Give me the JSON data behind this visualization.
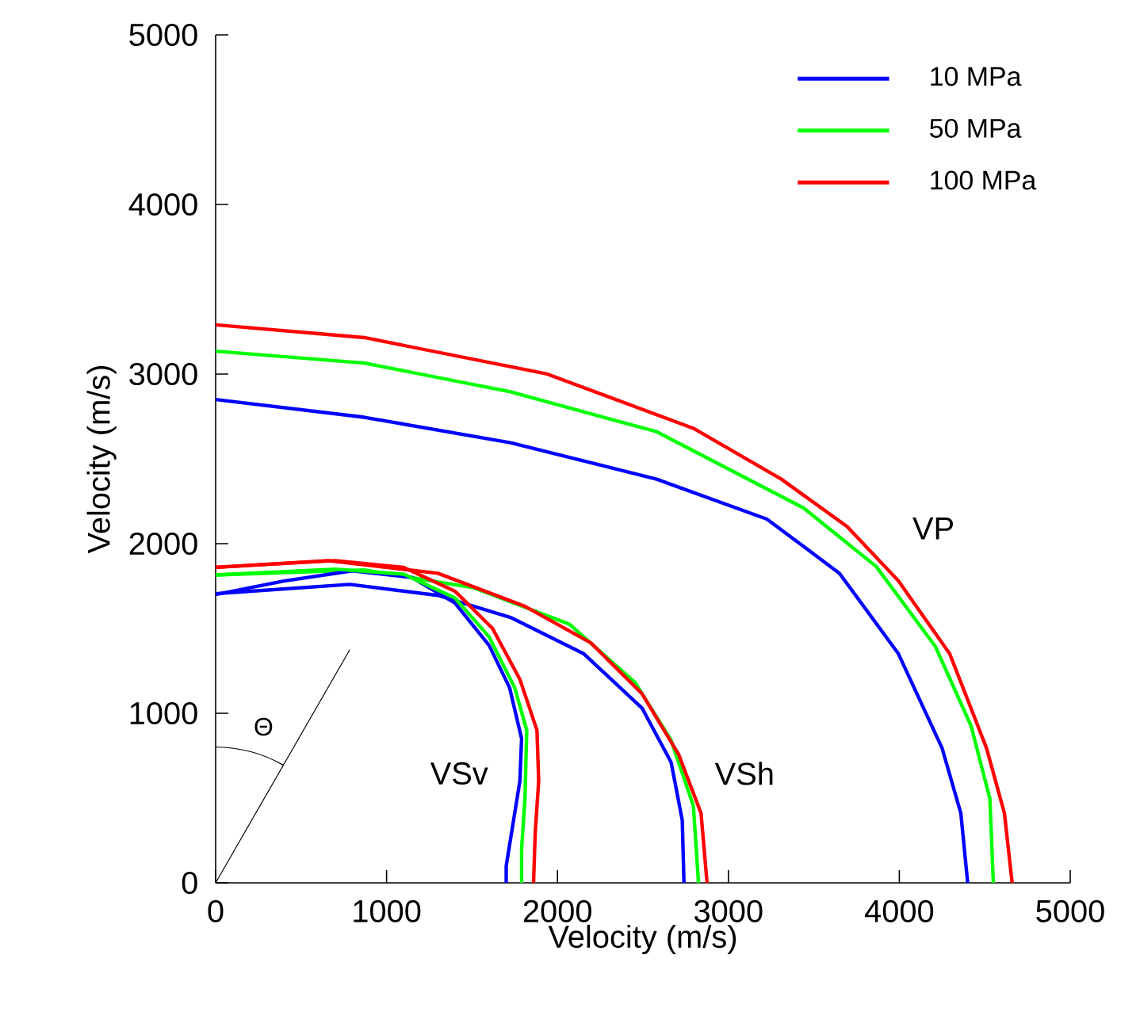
{
  "chart_data": {
    "type": "line",
    "xlabel": "Velocity (m/s)",
    "ylabel": "Velocity (m/s)",
    "xlim": [
      0,
      5000
    ],
    "ylim": [
      0,
      5000
    ],
    "xticks": [
      0,
      1000,
      2000,
      3000,
      4000,
      5000
    ],
    "yticks": [
      0,
      1000,
      2000,
      3000,
      4000,
      5000
    ],
    "legend": "top right",
    "grid": false,
    "marker": "none",
    "line_style": "solid",
    "series": [
      {
        "name": "10 MPa",
        "color": "#0000ff",
        "x": [
          0,
          870,
          1725,
          2580,
          3225,
          3650,
          3995,
          4250,
          4360,
          4400
        ],
        "values": [
          2850,
          2745,
          2595,
          2380,
          2145,
          1825,
          1350,
          795,
          410,
          0
        ]
      },
      {
        "name": "50 MPa",
        "color": "#00ff00",
        "x": [
          0,
          870,
          1725,
          2580,
          3440,
          3865,
          4210,
          4420,
          4530,
          4550
        ],
        "values": [
          3135,
          3065,
          2895,
          2660,
          2210,
          1865,
          1395,
          925,
          495,
          0
        ]
      },
      {
        "name": "100 MPa",
        "color": "#ff0000",
        "x": [
          0,
          870,
          1940,
          2795,
          3310,
          3695,
          3995,
          4295,
          4510,
          4615,
          4660
        ],
        "values": [
          3290,
          3215,
          3000,
          2680,
          2380,
          2100,
          1780,
          1350,
          795,
          410,
          0
        ]
      },
      {
        "color": "#0000ff",
        "x": [
          0,
          140,
          785,
          1300,
          1725,
          2155,
          2495,
          2665,
          2730,
          2740
        ],
        "values": [
          1705,
          1715,
          1760,
          1695,
          1565,
          1350,
          1030,
          710,
          370,
          0
        ]
      },
      {
        "color": "#00ff00",
        "x": [
          0,
          870,
          1510,
          2070,
          2455,
          2665,
          2795,
          2825
        ],
        "values": [
          1815,
          1845,
          1740,
          1525,
          1180,
          840,
          455,
          0
        ]
      },
      {
        "color": "#ff0000",
        "x": [
          0,
          655,
          1300,
          1810,
          2195,
          2495,
          2710,
          2840,
          2875
        ],
        "values": [
          1860,
          1900,
          1825,
          1630,
          1415,
          1115,
          755,
          410,
          0
        ]
      },
      {
        "color": "#0000ff",
        "x": [
          0,
          400,
          800,
          1150,
          1400,
          1600,
          1720,
          1790,
          1780,
          1740,
          1700,
          1700
        ],
        "values": [
          1700,
          1780,
          1840,
          1800,
          1650,
          1400,
          1150,
          850,
          600,
          350,
          100,
          0
        ]
      },
      {
        "color": "#00ff00",
        "x": [
          0,
          700,
          1100,
          1400,
          1600,
          1750,
          1820,
          1810,
          1790,
          1790
        ],
        "values": [
          1815,
          1850,
          1820,
          1680,
          1450,
          1150,
          900,
          500,
          200,
          0
        ]
      },
      {
        "color": "#ff0000",
        "x": [
          0,
          700,
          1100,
          1400,
          1620,
          1780,
          1880,
          1890,
          1870,
          1860
        ],
        "values": [
          1860,
          1900,
          1860,
          1720,
          1500,
          1200,
          900,
          600,
          300,
          0
        ]
      }
    ],
    "annotations": [
      "VP",
      "VSv",
      "VSh",
      "Θ"
    ]
  }
}
